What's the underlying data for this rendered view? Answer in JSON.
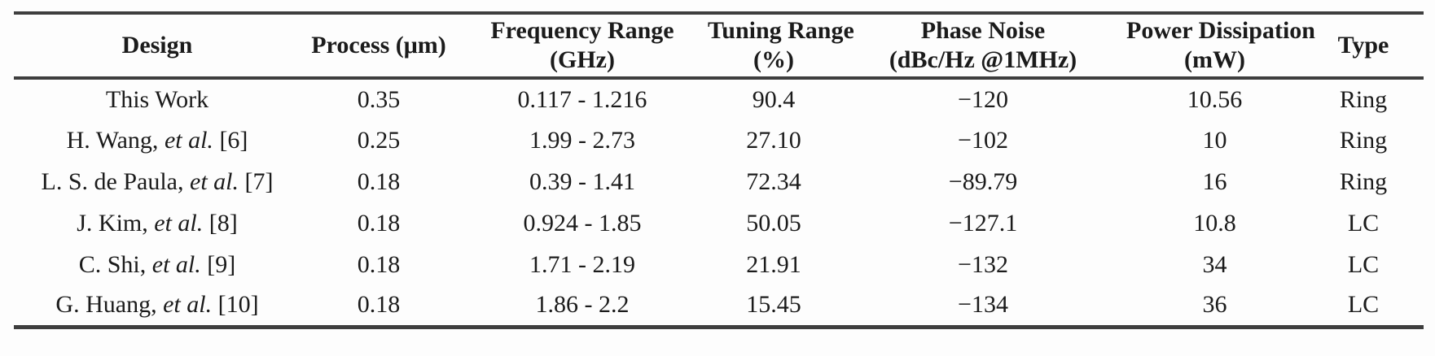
{
  "table": {
    "title_semantic": "VCO design comparison table",
    "rule_color": "#3e3e3e",
    "headers": [
      {
        "line1": "Design",
        "line2": ""
      },
      {
        "line1": "Process (μm)",
        "line2": ""
      },
      {
        "line1": "Frequency Range",
        "line2": "(GHz)"
      },
      {
        "line1": "Tuning Range",
        "line2": "(%)"
      },
      {
        "line1": "Phase Noise",
        "line2": "(dBc/Hz @1MHz)"
      },
      {
        "line1": "Power Dissipation",
        "line2": "(mW)"
      },
      {
        "line1": "Type",
        "line2": ""
      }
    ],
    "rows": [
      {
        "design": {
          "pre": "This Work",
          "etal": "",
          "post": ""
        },
        "process": "0.35",
        "freq": "0.117 - 1.216",
        "tuning": "90.4",
        "phase": "−120",
        "power": "10.56",
        "type": "Ring"
      },
      {
        "design": {
          "pre": "H. Wang, ",
          "etal": "et al.",
          "post": " [6]"
        },
        "process": "0.25",
        "freq": "1.99 - 2.73",
        "tuning": "27.10",
        "phase": "−102",
        "power": "10",
        "type": "Ring"
      },
      {
        "design": {
          "pre": "L. S. de Paula, ",
          "etal": "et al.",
          "post": " [7]"
        },
        "process": "0.18",
        "freq": "0.39 - 1.41",
        "tuning": "72.34",
        "phase": "−89.79",
        "power": "16",
        "type": "Ring"
      },
      {
        "design": {
          "pre": "J. Kim, ",
          "etal": "et al.",
          "post": " [8]"
        },
        "process": "0.18",
        "freq": "0.924 - 1.85",
        "tuning": "50.05",
        "phase": "−127.1",
        "power": "10.8",
        "type": "LC"
      },
      {
        "design": {
          "pre": "C. Shi, ",
          "etal": "et al.",
          "post": " [9]"
        },
        "process": "0.18",
        "freq": "1.71 - 2.19",
        "tuning": "21.91",
        "phase": "−132",
        "power": "34",
        "type": "LC"
      },
      {
        "design": {
          "pre": "G. Huang, ",
          "etal": "et al.",
          "post": " [10]"
        },
        "process": "0.18",
        "freq": "1.86 - 2.2",
        "tuning": "15.45",
        "phase": "−134",
        "power": "36",
        "type": "LC"
      }
    ]
  }
}
